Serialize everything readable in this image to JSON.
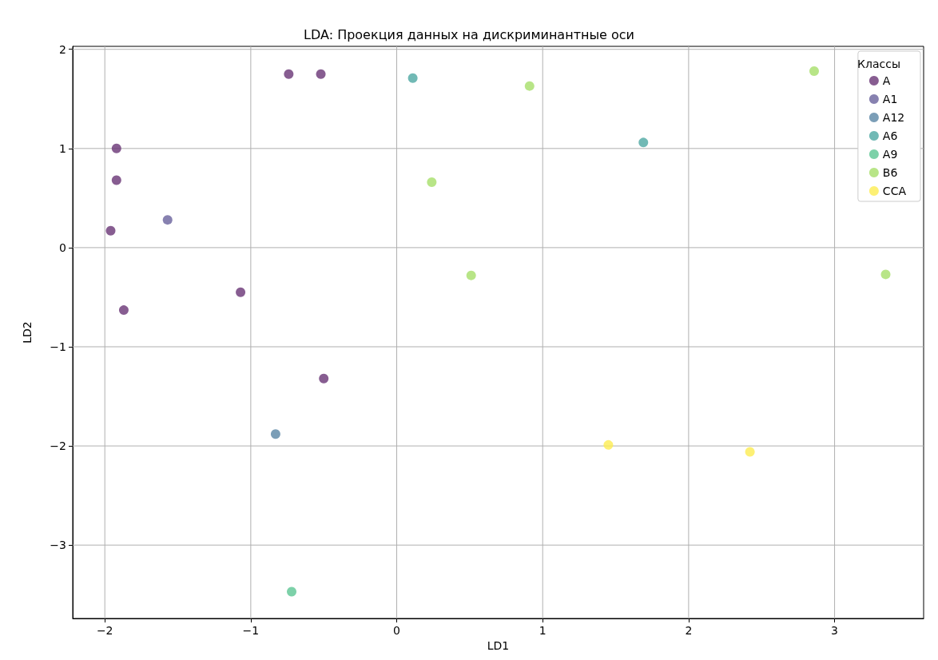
{
  "chart_data": {
    "type": "scatter",
    "title": "LDA: Проекция данных на дискриминантные оси",
    "xlabel": "LD1",
    "ylabel": "LD2",
    "legend_title": "Классы",
    "legend": "top right",
    "grid": true,
    "marker": "circle",
    "xlim": [
      -2.22,
      3.61
    ],
    "ylim": [
      -3.74,
      2.03
    ],
    "xticks": [
      {
        "value": -2,
        "label": "−2"
      },
      {
        "value": -1,
        "label": "−1"
      },
      0,
      1,
      2,
      3
    ],
    "yticks": [
      {
        "value": -3,
        "label": "−3"
      },
      {
        "value": -2,
        "label": "−2"
      },
      {
        "value": -1,
        "label": "−1"
      },
      0,
      1,
      2
    ],
    "series": [
      {
        "name": "A",
        "color": "#693476",
        "x": [
          -0.74,
          -0.52,
          -1.92,
          -1.92,
          -1.96,
          -1.87,
          -1.07,
          -0.5
        ],
        "values": [
          1.75,
          1.75,
          1.0,
          0.68,
          0.17,
          -0.63,
          -0.45,
          -1.32
        ]
      },
      {
        "name": "A1",
        "color": "#69619c",
        "x": [
          -1.57
        ],
        "values": [
          0.28
        ]
      },
      {
        "name": "A12",
        "color": "#5a86a5",
        "x": [
          -0.83
        ],
        "values": [
          -1.88
        ]
      },
      {
        "name": "A6",
        "color": "#4da7a3",
        "x": [
          0.11,
          1.69
        ],
        "values": [
          1.71,
          1.06
        ]
      },
      {
        "name": "A9",
        "color": "#5dc594",
        "x": [
          -0.72
        ],
        "values": [
          -3.47
        ]
      },
      {
        "name": "B6",
        "color": "#a6df69",
        "x": [
          0.91,
          0.24,
          0.51,
          2.86,
          3.35
        ],
        "values": [
          1.63,
          0.66,
          -0.28,
          1.78,
          -0.27
        ]
      },
      {
        "name": "CCA",
        "color": "#fdec51",
        "x": [
          1.45,
          2.42
        ],
        "values": [
          -1.99,
          -2.06
        ]
      }
    ]
  }
}
